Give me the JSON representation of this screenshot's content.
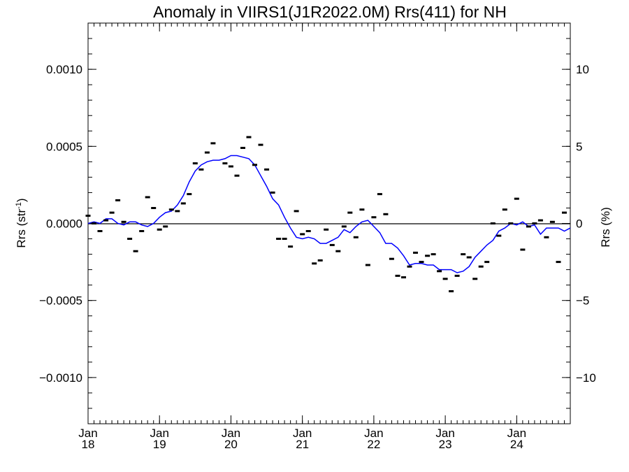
{
  "chart_data": {
    "type": "line",
    "title": "Anomaly in VIIRS1(J1R2022.0M) Rrs(411) for NH",
    "ylabel_left": "Rrs (str",
    "ylabel_left_sup": "-1",
    "ylabel_left_close": ")",
    "ylabel_right": "Rrs (%)",
    "x_range": [
      "2018-01",
      "2024-10"
    ],
    "ylim_left": [
      -0.0013,
      0.0013
    ],
    "ylim_right": [
      -13,
      13
    ],
    "left_ticks": [
      {
        "v": 0.001,
        "label": "0.0010"
      },
      {
        "v": 0.0005,
        "label": "0.0005"
      },
      {
        "v": 0,
        "label": "0.0000"
      },
      {
        "v": -0.0005,
        "label": "−0.0005"
      },
      {
        "v": -0.001,
        "label": "−0.0010"
      }
    ],
    "right_ticks": [
      {
        "v": 10,
        "label": "10"
      },
      {
        "v": 5,
        "label": "5"
      },
      {
        "v": 0,
        "label": "0"
      },
      {
        "v": -5,
        "label": "−5"
      },
      {
        "v": -10,
        "label": "−10"
      }
    ],
    "x_ticks": [
      {
        "date": "2018-01",
        "month": "Jan",
        "year": "18"
      },
      {
        "date": "2019-01",
        "month": "Jan",
        "year": "19"
      },
      {
        "date": "2020-01",
        "month": "Jan",
        "year": "20"
      },
      {
        "date": "2021-01",
        "month": "Jan",
        "year": "21"
      },
      {
        "date": "2022-01",
        "month": "Jan",
        "year": "22"
      },
      {
        "date": "2023-01",
        "month": "Jan",
        "year": "23"
      },
      {
        "date": "2024-01",
        "month": "Jan",
        "year": "24"
      }
    ],
    "zero_line": 0,
    "series": [
      {
        "kind": "monthly",
        "color": "#000000",
        "points": [
          {
            "x": "2018-01",
            "y": 5e-05
          },
          {
            "x": "2018-02",
            "y": 0.0
          },
          {
            "x": "2018-03",
            "y": -5e-05
          },
          {
            "x": "2018-04",
            "y": 2e-05
          },
          {
            "x": "2018-05",
            "y": 7e-05
          },
          {
            "x": "2018-06",
            "y": 0.00015
          },
          {
            "x": "2018-07",
            "y": 1e-05
          },
          {
            "x": "2018-08",
            "y": -0.0001
          },
          {
            "x": "2018-09",
            "y": -0.00018
          },
          {
            "x": "2018-10",
            "y": -5e-05
          },
          {
            "x": "2018-11",
            "y": 0.00017
          },
          {
            "x": "2018-12",
            "y": 0.0001
          },
          {
            "x": "2019-01",
            "y": -4e-05
          },
          {
            "x": "2019-02",
            "y": -2e-05
          },
          {
            "x": "2019-03",
            "y": 9e-05
          },
          {
            "x": "2019-04",
            "y": 8e-05
          },
          {
            "x": "2019-05",
            "y": 0.00013
          },
          {
            "x": "2019-06",
            "y": 0.00019
          },
          {
            "x": "2019-07",
            "y": 0.00039
          },
          {
            "x": "2019-08",
            "y": 0.00035
          },
          {
            "x": "2019-09",
            "y": 0.00046
          },
          {
            "x": "2019-10",
            "y": 0.00052
          },
          {
            "x": "2019-12",
            "y": 0.00039
          },
          {
            "x": "2020-01",
            "y": 0.00037
          },
          {
            "x": "2020-02",
            "y": 0.00031
          },
          {
            "x": "2020-03",
            "y": 0.00049
          },
          {
            "x": "2020-04",
            "y": 0.00056
          },
          {
            "x": "2020-05",
            "y": 0.00038
          },
          {
            "x": "2020-06",
            "y": 0.00051
          },
          {
            "x": "2020-07",
            "y": 0.00035
          },
          {
            "x": "2020-08",
            "y": 0.0002
          },
          {
            "x": "2020-09",
            "y": -0.0001
          },
          {
            "x": "2020-10",
            "y": -0.0001
          },
          {
            "x": "2020-11",
            "y": -0.00015
          },
          {
            "x": "2020-12",
            "y": 8e-05
          },
          {
            "x": "2021-01",
            "y": -7e-05
          },
          {
            "x": "2021-02",
            "y": -5e-05
          },
          {
            "x": "2021-03",
            "y": -0.00026
          },
          {
            "x": "2021-04",
            "y": -0.00024
          },
          {
            "x": "2021-05",
            "y": -4e-05
          },
          {
            "x": "2021-06",
            "y": -0.00014
          },
          {
            "x": "2021-07",
            "y": -0.00018
          },
          {
            "x": "2021-08",
            "y": -2e-05
          },
          {
            "x": "2021-09",
            "y": 7e-05
          },
          {
            "x": "2021-10",
            "y": -9e-05
          },
          {
            "x": "2021-11",
            "y": 9e-05
          },
          {
            "x": "2021-12",
            "y": -0.00027
          },
          {
            "x": "2022-01",
            "y": 4e-05
          },
          {
            "x": "2022-02",
            "y": 0.00019
          },
          {
            "x": "2022-03",
            "y": 6e-05
          },
          {
            "x": "2022-04",
            "y": -0.00023
          },
          {
            "x": "2022-05",
            "y": -0.00034
          },
          {
            "x": "2022-06",
            "y": -0.00035
          },
          {
            "x": "2022-07",
            "y": -0.00028
          },
          {
            "x": "2022-08",
            "y": -0.00019
          },
          {
            "x": "2022-09",
            "y": -0.00025
          },
          {
            "x": "2022-10",
            "y": -0.00021
          },
          {
            "x": "2022-11",
            "y": -0.0002
          },
          {
            "x": "2022-12",
            "y": -0.00031
          },
          {
            "x": "2023-01",
            "y": -0.00036
          },
          {
            "x": "2023-02",
            "y": -0.00044
          },
          {
            "x": "2023-03",
            "y": -0.00034
          },
          {
            "x": "2023-04",
            "y": -0.0002
          },
          {
            "x": "2023-05",
            "y": -0.00022
          },
          {
            "x": "2023-06",
            "y": -0.00036
          },
          {
            "x": "2023-07",
            "y": -0.00028
          },
          {
            "x": "2023-08",
            "y": -0.00025
          },
          {
            "x": "2023-09",
            "y": 0.0
          },
          {
            "x": "2023-10",
            "y": -8e-05
          },
          {
            "x": "2023-11",
            "y": 9e-05
          },
          {
            "x": "2023-12",
            "y": 0.0
          },
          {
            "x": "2024-01",
            "y": 0.00016
          },
          {
            "x": "2024-02",
            "y": -0.00017
          },
          {
            "x": "2024-03",
            "y": -2e-05
          },
          {
            "x": "2024-04",
            "y": 0.0
          },
          {
            "x": "2024-05",
            "y": 2e-05
          },
          {
            "x": "2024-06",
            "y": -9e-05
          },
          {
            "x": "2024-07",
            "y": 1e-05
          },
          {
            "x": "2024-08",
            "y": -0.00025
          },
          {
            "x": "2024-09",
            "y": 7e-05
          }
        ]
      },
      {
        "kind": "running-mean",
        "color": "#0000ff",
        "points": [
          {
            "x": "2018-01",
            "y": 0.0
          },
          {
            "x": "2018-02",
            "y": 1e-05
          },
          {
            "x": "2018-03",
            "y": 0.0
          },
          {
            "x": "2018-04",
            "y": 3e-05
          },
          {
            "x": "2018-05",
            "y": 3e-05
          },
          {
            "x": "2018-06",
            "y": 0.0
          },
          {
            "x": "2018-07",
            "y": -1e-05
          },
          {
            "x": "2018-08",
            "y": 1e-05
          },
          {
            "x": "2018-09",
            "y": 1e-05
          },
          {
            "x": "2018-10",
            "y": -1e-05
          },
          {
            "x": "2018-11",
            "y": -2e-05
          },
          {
            "x": "2018-12",
            "y": 0.0
          },
          {
            "x": "2019-01",
            "y": 4e-05
          },
          {
            "x": "2019-02",
            "y": 7e-05
          },
          {
            "x": "2019-03",
            "y": 8e-05
          },
          {
            "x": "2019-04",
            "y": 0.00012
          },
          {
            "x": "2019-05",
            "y": 0.00018
          },
          {
            "x": "2019-06",
            "y": 0.00027
          },
          {
            "x": "2019-07",
            "y": 0.00034
          },
          {
            "x": "2019-08",
            "y": 0.00038
          },
          {
            "x": "2019-09",
            "y": 0.0004
          },
          {
            "x": "2019-10",
            "y": 0.00041
          },
          {
            "x": "2019-11",
            "y": 0.00041
          },
          {
            "x": "2019-12",
            "y": 0.00042
          },
          {
            "x": "2020-01",
            "y": 0.00044
          },
          {
            "x": "2020-02",
            "y": 0.00044
          },
          {
            "x": "2020-03",
            "y": 0.00043
          },
          {
            "x": "2020-04",
            "y": 0.00042
          },
          {
            "x": "2020-05",
            "y": 0.00038
          },
          {
            "x": "2020-06",
            "y": 0.00031
          },
          {
            "x": "2020-07",
            "y": 0.00024
          },
          {
            "x": "2020-08",
            "y": 0.00016
          },
          {
            "x": "2020-09",
            "y": 0.00012
          },
          {
            "x": "2020-10",
            "y": 4e-05
          },
          {
            "x": "2020-11",
            "y": -3e-05
          },
          {
            "x": "2020-12",
            "y": -9e-05
          },
          {
            "x": "2021-01",
            "y": -0.0001
          },
          {
            "x": "2021-02",
            "y": -9e-05
          },
          {
            "x": "2021-03",
            "y": -0.0001
          },
          {
            "x": "2021-04",
            "y": -0.00013
          },
          {
            "x": "2021-05",
            "y": -0.00013
          },
          {
            "x": "2021-06",
            "y": -0.00011
          },
          {
            "x": "2021-07",
            "y": -9e-05
          },
          {
            "x": "2021-08",
            "y": -4e-05
          },
          {
            "x": "2021-09",
            "y": -6e-05
          },
          {
            "x": "2021-10",
            "y": -2e-05
          },
          {
            "x": "2021-11",
            "y": 1e-05
          },
          {
            "x": "2021-12",
            "y": 2e-05
          },
          {
            "x": "2022-01",
            "y": -2e-05
          },
          {
            "x": "2022-02",
            "y": -6e-05
          },
          {
            "x": "2022-03",
            "y": -0.00013
          },
          {
            "x": "2022-04",
            "y": -0.00013
          },
          {
            "x": "2022-05",
            "y": -0.00016
          },
          {
            "x": "2022-06",
            "y": -0.00021
          },
          {
            "x": "2022-07",
            "y": -0.00027
          },
          {
            "x": "2022-08",
            "y": -0.00026
          },
          {
            "x": "2022-09",
            "y": -0.00026
          },
          {
            "x": "2022-10",
            "y": -0.00027
          },
          {
            "x": "2022-11",
            "y": -0.00027
          },
          {
            "x": "2022-12",
            "y": -0.0003
          },
          {
            "x": "2023-01",
            "y": -0.0003
          },
          {
            "x": "2023-02",
            "y": -0.0003
          },
          {
            "x": "2023-03",
            "y": -0.00032
          },
          {
            "x": "2023-04",
            "y": -0.00031
          },
          {
            "x": "2023-05",
            "y": -0.00028
          },
          {
            "x": "2023-06",
            "y": -0.00022
          },
          {
            "x": "2023-07",
            "y": -0.00018
          },
          {
            "x": "2023-08",
            "y": -0.00014
          },
          {
            "x": "2023-09",
            "y": -0.00011
          },
          {
            "x": "2023-10",
            "y": -5e-05
          },
          {
            "x": "2023-11",
            "y": -3e-05
          },
          {
            "x": "2023-12",
            "y": 0.0
          },
          {
            "x": "2024-01",
            "y": -1e-05
          },
          {
            "x": "2024-02",
            "y": 1e-05
          },
          {
            "x": "2024-03",
            "y": -2e-05
          },
          {
            "x": "2024-04",
            "y": -1e-05
          },
          {
            "x": "2024-05",
            "y": -7e-05
          },
          {
            "x": "2024-06",
            "y": -3e-05
          },
          {
            "x": "2024-07",
            "y": -3e-05
          },
          {
            "x": "2024-08",
            "y": -3e-05
          },
          {
            "x": "2024-09",
            "y": -5e-05
          },
          {
            "x": "2024-10",
            "y": -3e-05
          }
        ]
      }
    ]
  }
}
